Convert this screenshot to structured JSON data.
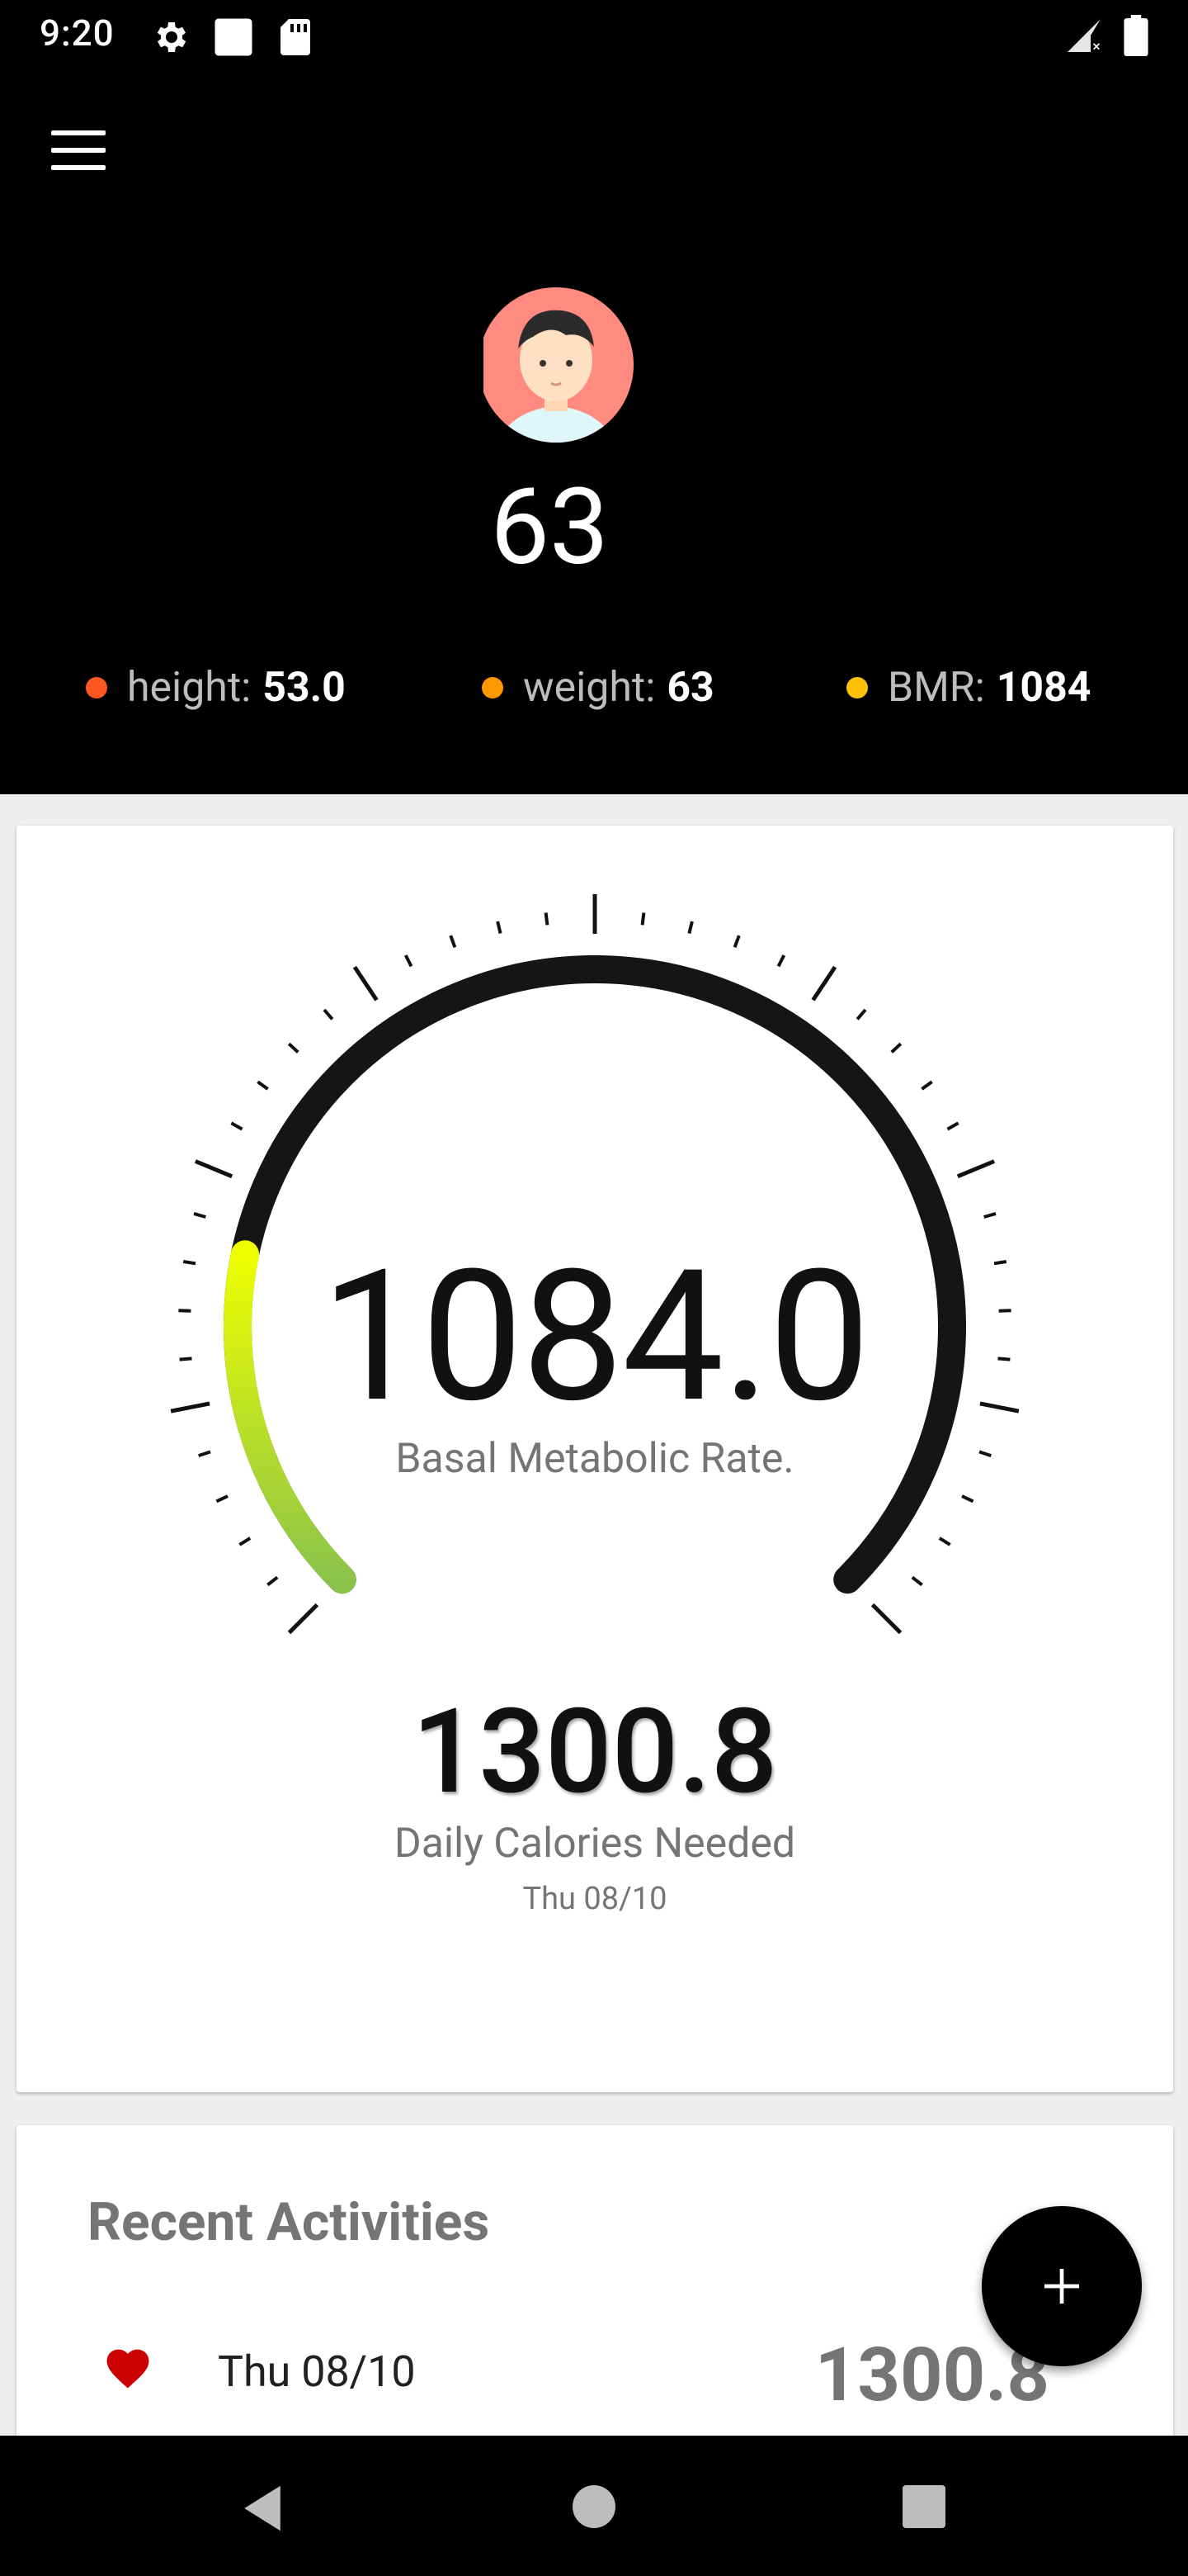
{
  "status_bar": {
    "time": "9:20",
    "icons_left": [
      "gear-icon",
      "square-notification-icon",
      "sd-card-icon"
    ],
    "icons_right": [
      "signal-icon",
      "battery-icon"
    ]
  },
  "header": {
    "menu_icon": "hamburger-menu-icon",
    "avatar": "user-avatar",
    "profile_number": "63",
    "stats": [
      {
        "label": "height:",
        "value": "53.0",
        "color": "#ff5722"
      },
      {
        "label": "weight:",
        "value": "63",
        "color": "#ff9800"
      },
      {
        "label": "BMR:",
        "value": "1084",
        "color": "#ffc107"
      }
    ]
  },
  "gauge": {
    "value": "1084.0",
    "label": "Basal Metabolic Rate.",
    "fill_fraction": 0.21,
    "colors": {
      "track": "#151515",
      "fill_start": "#8bc34a",
      "fill_end": "#eeff00"
    }
  },
  "daily": {
    "value": "1300.8",
    "label": "Daily Calories Needed",
    "date": "Thu 08/10"
  },
  "activities": {
    "title": "Recent Activities",
    "items": [
      {
        "icon": "heart-icon",
        "date": "Thu 08/10",
        "value": "1300.8"
      }
    ]
  },
  "fab": {
    "icon": "plus-icon"
  },
  "nav": {
    "back": "back-icon",
    "home": "home-icon",
    "recents": "recents-icon"
  }
}
